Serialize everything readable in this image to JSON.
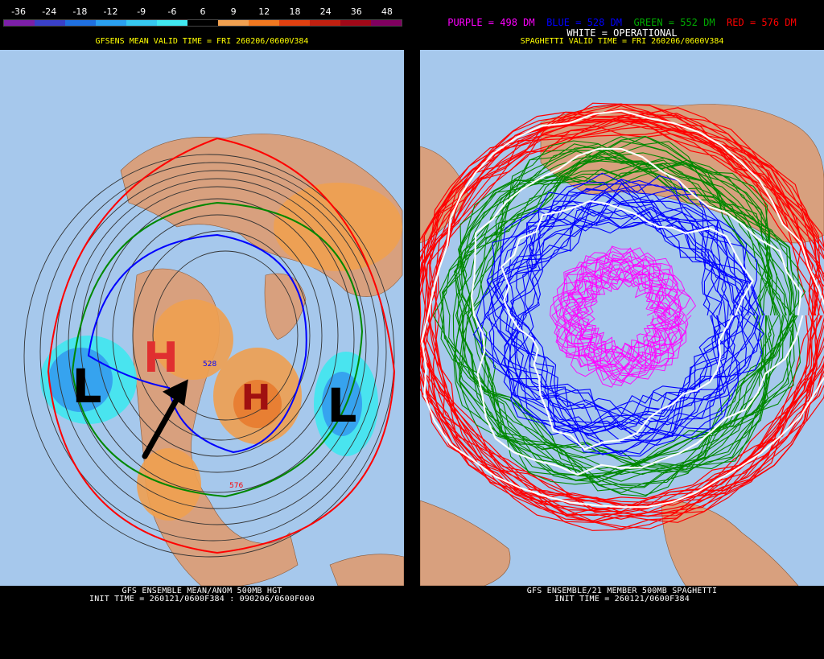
{
  "left": {
    "colorbar_ticks": [
      "-36",
      "-24",
      "-18",
      "-12",
      "-9",
      "-6",
      "6",
      "9",
      "12",
      "18",
      "24",
      "36",
      "48"
    ],
    "colorbar_colors": [
      "#7c1fa8",
      "#3a40c8",
      "#1f70e0",
      "#2aa0f0",
      "#36c8f0",
      "#40e8f0",
      "#000000",
      "#f0a050",
      "#f07820",
      "#e04010",
      "#c02010",
      "#a00818",
      "#800060"
    ],
    "subtitle": "GFSENS MEAN VALID TIME = FRI 260206/0600V384",
    "caption_line1": "GFS ENSEMBLE MEAN/ANOM 500MB HGT",
    "caption_line2": "INIT TIME = 260121/0600F384 : 090206/0600F000",
    "annotations": {
      "high_west": "H",
      "high_east": "H",
      "low_west": "L",
      "low_east": "L",
      "contour_label_1": "528",
      "contour_label_2": "576"
    }
  },
  "right": {
    "legend_purple": "PURPLE = 498 DM",
    "legend_blue": "BLUE = 528 DM",
    "legend_green": "GREEN = 552 DM",
    "legend_red": "RED = 576 DM",
    "legend_white": "WHITE = OPERATIONAL",
    "subtitle": "SPAGHETTI VALID TIME = FRI 260206/0600V384",
    "caption_line1": "GFS ENSEMBLE/21 MEMBER 500MB SPAGHETTI",
    "caption_line2": "INIT TIME = 260121/0600F384"
  },
  "colors": {
    "ocean": "#a6c8ec",
    "land": "#d8a07e",
    "purple": "#ff00ff",
    "blue": "#0000ff",
    "green": "#008800",
    "red": "#ff0000",
    "white": "#ffffff"
  }
}
